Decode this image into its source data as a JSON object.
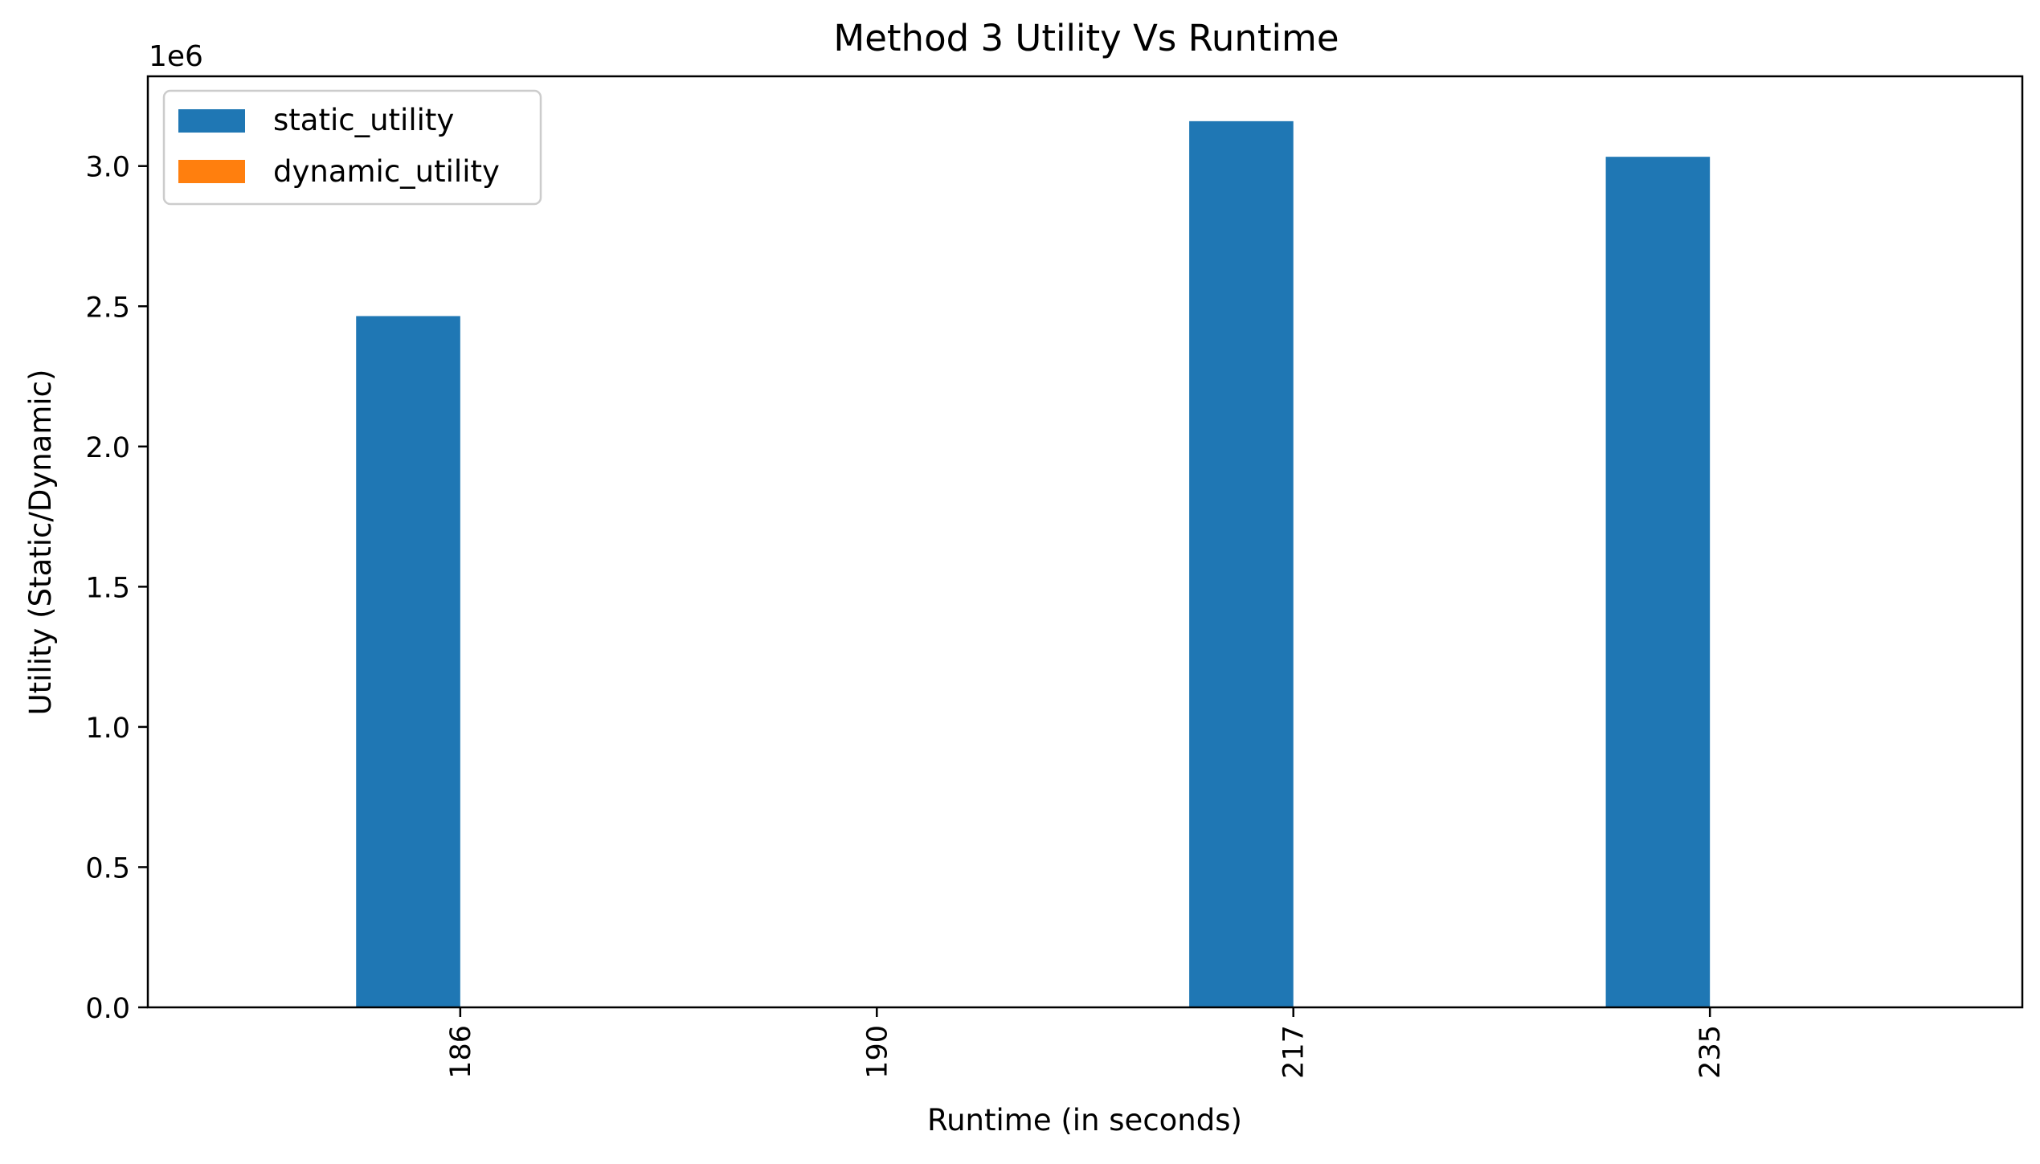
{
  "chart_data": {
    "type": "bar",
    "title": "Method 3 Utility Vs Runtime",
    "xlabel": "Runtime (in seconds)",
    "ylabel": "Utility (Static/Dynamic)",
    "y_offset_label": "1e6",
    "y_scale_factor": 1000000,
    "categories": [
      "186",
      "190",
      "217",
      "235"
    ],
    "series": [
      {
        "name": "static_utility",
        "color": "#1f77b4",
        "values": [
          2465000,
          0,
          3160000,
          3033000
        ]
      },
      {
        "name": "dynamic_utility",
        "color": "#ff7f0e",
        "values": [
          0,
          0,
          0,
          0
        ]
      }
    ],
    "ylim": [
      0,
      3320000
    ],
    "yticks": [
      0,
      500000,
      1000000,
      1500000,
      2000000,
      2500000,
      3000000
    ],
    "ytick_labels": [
      "0.0",
      "0.5",
      "1.0",
      "1.5",
      "2.0",
      "2.5",
      "3.0"
    ],
    "x_tick_rotation": "vertical",
    "grid": false,
    "legend_position": "top-left"
  }
}
